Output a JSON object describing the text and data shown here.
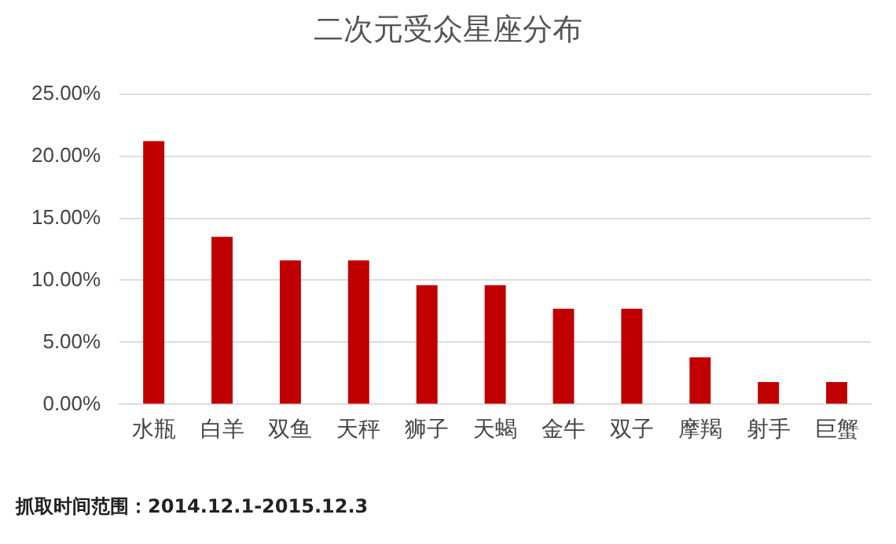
{
  "chart_data": {
    "type": "bar",
    "title": "二次元受众星座分布",
    "categories": [
      "水瓶",
      "白羊",
      "双鱼",
      "天秤",
      "狮子",
      "天蝎",
      "金牛",
      "双子",
      "摩羯",
      "射手",
      "巨蟹"
    ],
    "values": [
      21.2,
      13.5,
      11.6,
      11.6,
      9.6,
      9.6,
      7.7,
      7.7,
      3.8,
      1.8,
      1.8
    ],
    "color": "#c00000",
    "ylim": [
      0,
      25
    ],
    "yticks": [
      {
        "value": 0,
        "label": "0.00%"
      },
      {
        "value": 5,
        "label": "5.00%"
      },
      {
        "value": 10,
        "label": "10.00%"
      },
      {
        "value": 15,
        "label": "15.00%"
      },
      {
        "value": 20,
        "label": "20.00%"
      },
      {
        "value": 25,
        "label": "25.00%"
      }
    ],
    "grid": "y",
    "legend": false,
    "annotations": [
      "抓取时间范围：2014.12.1-2015.12.3"
    ]
  }
}
